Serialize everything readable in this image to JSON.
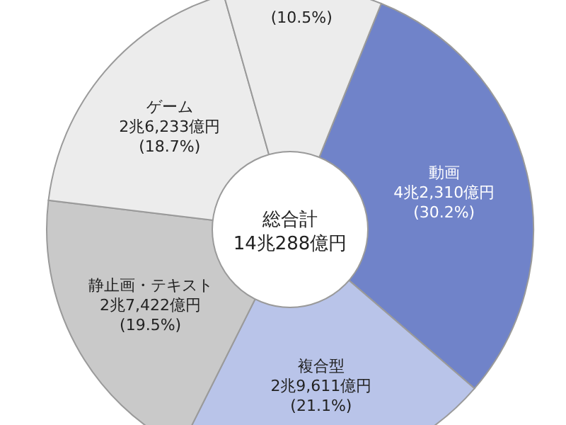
{
  "chart_data": {
    "type": "donut",
    "title": "総合計",
    "subtitle": "14兆288億円",
    "categories": [
      "動画",
      "複合型",
      "静止画・テキスト",
      "ゲーム",
      null
    ],
    "values": [
      30.2,
      21.1,
      19.5,
      18.7,
      10.5
    ],
    "value_labels": [
      "4兆2,310億円 (30.2%)",
      "2兆9,611億円 (21.1%)",
      "2兆7,422億円 (19.5%)",
      "2兆6,233億円 (18.7%)",
      "(10.5%)"
    ],
    "colors": [
      "#7083c9",
      "#b9c4e9",
      "#c9c9c9",
      "#ececec",
      "#ececec"
    ]
  }
}
